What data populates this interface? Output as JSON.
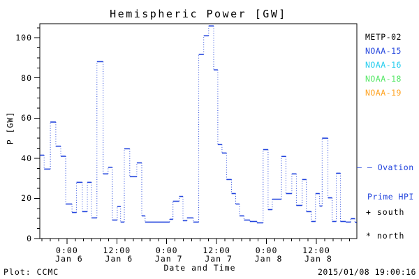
{
  "title": "Hemispheric Power [GW]",
  "y_axis": {
    "label": "P [GW]"
  },
  "x_axis": {
    "label": "Date and Time",
    "ticks": [
      {
        "time": "0:00",
        "date": "Jan 6"
      },
      {
        "time": "12:00",
        "date": "Jan 6"
      },
      {
        "time": "0:00",
        "date": "Jan 7"
      },
      {
        "time": "12:00",
        "date": "Jan 7"
      },
      {
        "time": "0:00",
        "date": "Jan 8"
      },
      {
        "time": "12:00",
        "date": "Jan 8"
      }
    ]
  },
  "legend": {
    "satellites": [
      {
        "label": "METP-02",
        "color": "#000000"
      },
      {
        "label": "NOAA-15",
        "color": "#2244dd"
      },
      {
        "label": "NOAA-16",
        "color": "#22ccee"
      },
      {
        "label": "NOAA-18",
        "color": "#55e866"
      },
      {
        "label": "NOAA-19",
        "color": "#ffa322"
      }
    ],
    "ovation": {
      "line1": "– – Ovation",
      "line2": "Prime HPI",
      "color": "#2244dd"
    },
    "south_marker": "+ south",
    "north_marker": "* north"
  },
  "footer": {
    "left": "Plot: CCMC",
    "right": "2015/01/08 19:00:16"
  },
  "chart_data": {
    "type": "line",
    "title": "Hemispheric Power [GW]",
    "xlabel": "Date and Time",
    "ylabel": "P [GW]",
    "x_unit": "hours from 2015-01-06 00:00",
    "xlim": [
      -6.54,
      69.75
    ],
    "ylim": [
      0,
      107
    ],
    "x_major_ticks_hours": [
      0,
      12,
      24,
      36,
      48,
      60
    ],
    "x_minor_step_hours": 2,
    "y_major_ticks": [
      0,
      20,
      40,
      60,
      80,
      100
    ],
    "y_minor_step": 5,
    "grid": false,
    "legend_position": "right",
    "line_style": "horizontal step segments joined by dotted vertical connectors",
    "series": [
      {
        "name": "NOAA-15 Ovation Prime HPI (south)",
        "color": "#2244dd",
        "segments_t0_t1_gw": [
          [
            -6.5,
            -5.5,
            41.5
          ],
          [
            -5.5,
            -4.0,
            34.6
          ],
          [
            -4.0,
            -2.7,
            58.0
          ],
          [
            -2.7,
            -1.5,
            46.0
          ],
          [
            -1.5,
            -0.3,
            41.0
          ],
          [
            -0.3,
            1.2,
            17.2
          ],
          [
            1.2,
            2.3,
            13.0
          ],
          [
            2.3,
            3.7,
            28.0
          ],
          [
            3.7,
            4.9,
            13.4
          ],
          [
            4.9,
            5.9,
            28.0
          ],
          [
            5.9,
            7.2,
            10.3
          ],
          [
            7.2,
            8.7,
            88.1
          ],
          [
            8.7,
            9.9,
            32.2
          ],
          [
            9.9,
            10.9,
            35.5
          ],
          [
            10.9,
            12.1,
            9.2
          ],
          [
            12.1,
            12.9,
            16.0
          ],
          [
            12.9,
            13.8,
            8.2
          ],
          [
            13.8,
            15.1,
            44.7
          ],
          [
            15.1,
            16.8,
            30.8
          ],
          [
            16.8,
            18.0,
            37.7
          ],
          [
            18.0,
            18.8,
            11.3
          ],
          [
            18.8,
            24.7,
            8.2
          ],
          [
            24.7,
            25.5,
            9.6
          ],
          [
            25.5,
            27.0,
            18.6
          ],
          [
            27.0,
            27.9,
            21.0
          ],
          [
            27.9,
            28.9,
            8.9
          ],
          [
            28.9,
            30.4,
            10.3
          ],
          [
            30.4,
            31.7,
            8.2
          ],
          [
            31.7,
            32.9,
            91.7
          ],
          [
            32.9,
            34.1,
            101.0
          ],
          [
            34.1,
            35.3,
            105.9
          ],
          [
            35.3,
            36.3,
            84.0
          ],
          [
            36.3,
            37.3,
            46.8
          ],
          [
            37.3,
            38.4,
            42.6
          ],
          [
            38.4,
            39.6,
            29.4
          ],
          [
            39.6,
            40.6,
            22.4
          ],
          [
            40.6,
            41.5,
            17.2
          ],
          [
            41.5,
            42.6,
            11.3
          ],
          [
            42.6,
            44.0,
            9.2
          ],
          [
            44.0,
            45.7,
            8.5
          ],
          [
            45.7,
            47.2,
            7.8
          ],
          [
            47.2,
            48.4,
            44.3
          ],
          [
            48.4,
            49.4,
            14.4
          ],
          [
            49.4,
            51.6,
            19.6
          ],
          [
            51.6,
            52.7,
            40.9
          ],
          [
            52.7,
            54.1,
            22.4
          ],
          [
            54.1,
            55.2,
            32.2
          ],
          [
            55.2,
            56.6,
            16.5
          ],
          [
            56.6,
            57.6,
            29.4
          ],
          [
            57.6,
            58.8,
            13.4
          ],
          [
            58.8,
            59.8,
            8.5
          ],
          [
            59.8,
            60.8,
            22.4
          ],
          [
            60.8,
            61.4,
            16.2
          ],
          [
            61.4,
            62.8,
            50.0
          ],
          [
            62.8,
            63.8,
            20.3
          ],
          [
            63.8,
            64.8,
            8.5
          ],
          [
            64.8,
            65.8,
            32.5
          ],
          [
            65.8,
            67.1,
            8.5
          ],
          [
            67.1,
            68.3,
            8.2
          ],
          [
            68.3,
            69.3,
            9.9
          ],
          [
            69.3,
            69.7,
            8.0
          ]
        ]
      }
    ]
  }
}
